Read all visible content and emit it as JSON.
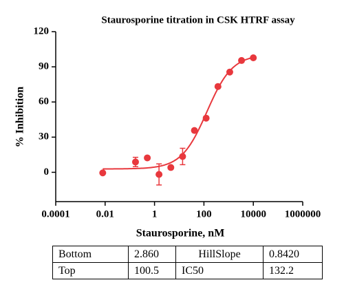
{
  "chart_data": {
    "type": "scatter",
    "title": "Staurosporine titration in CSK HTRF assay",
    "x_label": "Staurosporine, nM",
    "y_label": "% Inhibition",
    "x": [
      0.008,
      0.17,
      0.51,
      1.52,
      4.57,
      13.7,
      41.2,
      123,
      370,
      1111,
      3333,
      10000
    ],
    "series": [
      {
        "color": "#e8383d",
        "values": [
          -0.5,
          8.8,
          12.3,
          -1.8,
          4.1,
          13.5,
          35.7,
          46.2,
          73.2,
          85.5,
          95.4,
          97.7
        ],
        "errors": [
          null,
          4,
          null,
          9,
          null,
          7,
          null,
          null,
          null,
          null,
          null,
          null
        ]
      }
    ],
    "xlim": [
      0.0001,
      1000000
    ],
    "xticks": [
      0.0001,
      0.01,
      1,
      100,
      10000,
      1000000
    ],
    "log_x": true,
    "ylim": [
      -25,
      120
    ],
    "yticks": [
      0,
      30,
      60,
      90,
      120
    ]
  },
  "table": {
    "rows": [
      [
        "Bottom",
        "2.860",
        "HillSlope",
        "0.8420"
      ],
      [
        "Top",
        "100.5",
        "IC50",
        "132.2"
      ]
    ]
  }
}
